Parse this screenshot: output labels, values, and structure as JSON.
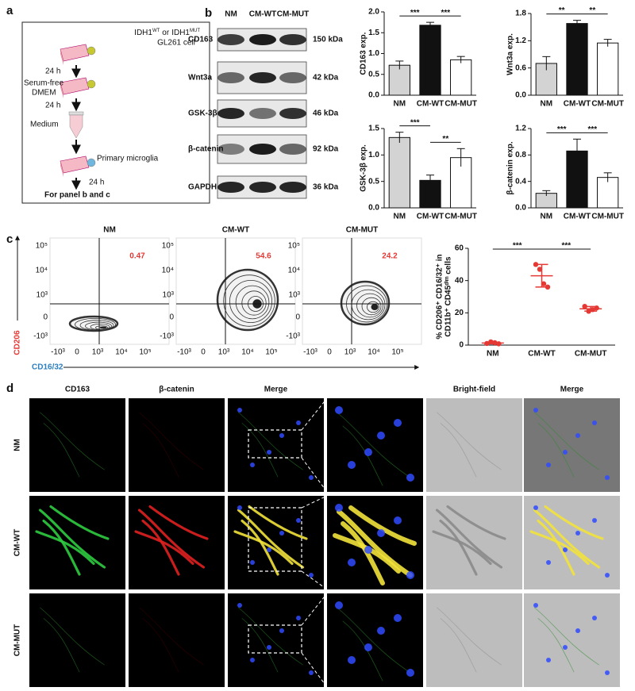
{
  "panels": {
    "a": {
      "letter": "a",
      "gene": "IDH1",
      "wt": "WT",
      "or": "or",
      "mut": "MUT",
      "cell": "GL261 cell",
      "step1": "24 h",
      "medium1_line1": "Serum-free",
      "medium1_line2": "DMEM",
      "step2": "24 h",
      "medium2": "Medium",
      "target": "Primary microglia",
      "step3": "24 h",
      "footer": "For panel b and c"
    },
    "b": {
      "letter": "b",
      "lanes": [
        "NM",
        "CM-WT",
        "CM-MUT"
      ],
      "proteins": [
        {
          "name": "CD163",
          "size": "150 kDa"
        },
        {
          "name": "Wnt3a",
          "size": "42 kDa"
        },
        {
          "name": "GSK-3β",
          "size": "46 kDa"
        },
        {
          "name": "β-catenin",
          "size": "92 kDa"
        },
        {
          "name": "GAPDH",
          "size": "36 kDa"
        }
      ]
    },
    "c": {
      "letter": "c",
      "plots": [
        {
          "title": "NM",
          "percent": 0.47
        },
        {
          "title": "CM-WT",
          "percent": 54.6
        },
        {
          "title": "CM-MUT",
          "percent": 24.2
        }
      ],
      "y_axis_label": "CD206",
      "x_axis_label": "CD16/32",
      "yticks": [
        "10⁵",
        "10⁴",
        "10³",
        "0",
        "-10³"
      ],
      "xticks": [
        "-10³",
        "0",
        "10³",
        "10⁴",
        "10⁵"
      ]
    },
    "d": {
      "letter": "d",
      "columns": [
        "CD163",
        "β-catenin",
        "Merge",
        "Bright-field",
        "Merge"
      ],
      "rows": [
        "NM",
        "CM-WT",
        "CM-MUT"
      ]
    }
  },
  "chart_data": [
    {
      "type": "bar",
      "y_label": "CD163 exp.",
      "categories": [
        "NM",
        "CM-WT",
        "CM-MUT"
      ],
      "values": [
        0.72,
        1.68,
        0.85
      ],
      "errors": [
        0.1,
        0.07,
        0.08
      ],
      "colors": [
        "#d3d3d3",
        "#111111",
        "#ffffff"
      ],
      "ylim": [
        0,
        2
      ],
      "yticks": [
        {
          "value": 0,
          "label": "0.0"
        },
        0.5,
        {
          "value": 1,
          "label": "1.0"
        },
        1.5,
        {
          "value": 2,
          "label": "2.0"
        }
      ],
      "significance": [
        "***",
        "***"
      ]
    },
    {
      "type": "bar",
      "y_label": "Wnt3a exp.",
      "categories": [
        "NM",
        "CM-WT",
        "CM-MUT"
      ],
      "values": [
        0.7,
        1.58,
        1.15
      ],
      "errors": [
        0.15,
        0.07,
        0.08
      ],
      "colors": [
        "#d3d3d3",
        "#111111",
        "#ffffff"
      ],
      "ylim": [
        0,
        1.8
      ],
      "yticks": [
        {
          "value": 0,
          "label": "0.0"
        },
        0.6,
        1.2,
        1.8
      ],
      "significance": [
        "**",
        "**"
      ]
    },
    {
      "type": "bar",
      "y_label": "GSK-3β exp.",
      "categories": [
        "NM",
        "CM-WT",
        "CM-MUT"
      ],
      "values": [
        1.33,
        0.52,
        0.95
      ],
      "errors": [
        0.1,
        0.1,
        0.17
      ],
      "colors": [
        "#d3d3d3",
        "#111111",
        "#ffffff"
      ],
      "ylim": [
        0,
        1.5
      ],
      "yticks": [
        {
          "value": 0,
          "label": "0.0"
        },
        0.5,
        {
          "value": 1,
          "label": "1.0"
        },
        1.5
      ],
      "significance": [
        "***",
        "**"
      ]
    },
    {
      "type": "bar",
      "y_label": "β-catenin exp.",
      "categories": [
        "NM",
        "CM-WT",
        "CM-MUT"
      ],
      "values": [
        0.22,
        0.86,
        0.46
      ],
      "errors": [
        0.04,
        0.18,
        0.07
      ],
      "colors": [
        "#d3d3d3",
        "#111111",
        "#ffffff"
      ],
      "ylim": [
        0,
        1.2
      ],
      "yticks": [
        {
          "value": 0,
          "label": "0.0"
        },
        0.4,
        0.8,
        1.2
      ],
      "significance": [
        "***",
        "***"
      ]
    },
    {
      "type": "strip",
      "y_label": [
        "% CD206⁺ CD16/32⁺ in",
        "CD11b⁺ CD45ᵈⁱᵐ cells"
      ],
      "categories": [
        "NM",
        "CM-WT",
        "CM-MUT"
      ],
      "values": [
        [
          1.0,
          2.0,
          1.5,
          0.8
        ],
        [
          50,
          47,
          38,
          36
        ],
        [
          24,
          21,
          22,
          23
        ]
      ],
      "means": [
        1.3,
        43,
        22.5
      ],
      "sds": [
        0.5,
        7,
        1.4
      ],
      "color": "#e53935",
      "ylim": [
        0,
        60
      ],
      "yticks": [
        0,
        20,
        40,
        60
      ],
      "significance": [
        "***",
        "***"
      ]
    }
  ]
}
